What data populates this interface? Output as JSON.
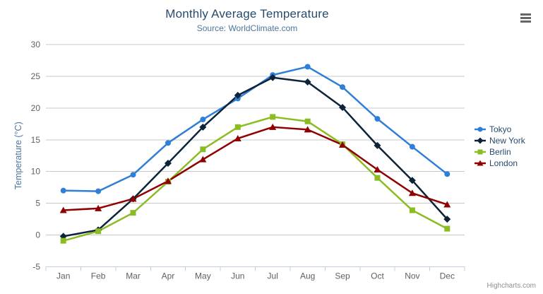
{
  "header": {
    "title": "Monthly Average Temperature",
    "subtitle": "Source: WorldClimate.com"
  },
  "credits": "Highcharts.com",
  "menu_icon": "hamburger-icon",
  "colors": {
    "title": "#274b6d",
    "subtitle": "#4d759e",
    "axis_title": "#4d759e",
    "axis_labels": "#606060",
    "gridline": "#c8c8c8",
    "axis_line": "#c0d0e0",
    "background": "#ffffff"
  },
  "chart_data": {
    "type": "line",
    "title": "Monthly Average Temperature",
    "subtitle": "Source: WorldClimate.com",
    "categories": [
      "Jan",
      "Feb",
      "Mar",
      "Apr",
      "May",
      "Jun",
      "Jul",
      "Aug",
      "Sep",
      "Oct",
      "Nov",
      "Dec"
    ],
    "xlabel": "",
    "ylabel": "Temperature (°C)",
    "ylim": [
      -5,
      30
    ],
    "ytick_interval": 5,
    "grid": true,
    "legend_position": "right",
    "series": [
      {
        "name": "Tokyo",
        "color": "#2f7ed8",
        "marker": "circle",
        "values": [
          7.0,
          6.9,
          9.5,
          14.5,
          18.2,
          21.5,
          25.2,
          26.5,
          23.3,
          18.3,
          13.9,
          9.6
        ]
      },
      {
        "name": "New York",
        "color": "#0d233a",
        "marker": "diamond",
        "values": [
          -0.2,
          0.8,
          5.7,
          11.3,
          17.0,
          22.0,
          24.8,
          24.1,
          20.1,
          14.1,
          8.6,
          2.5
        ]
      },
      {
        "name": "Berlin",
        "color": "#8bbc21",
        "marker": "square",
        "values": [
          -0.9,
          0.6,
          3.5,
          8.4,
          13.5,
          17.0,
          18.6,
          17.9,
          14.3,
          9.0,
          3.9,
          1.0
        ]
      },
      {
        "name": "London",
        "color": "#910000",
        "marker": "triangle",
        "values": [
          3.9,
          4.2,
          5.7,
          8.5,
          11.9,
          15.2,
          17.0,
          16.6,
          14.2,
          10.3,
          6.6,
          4.8
        ]
      }
    ]
  }
}
